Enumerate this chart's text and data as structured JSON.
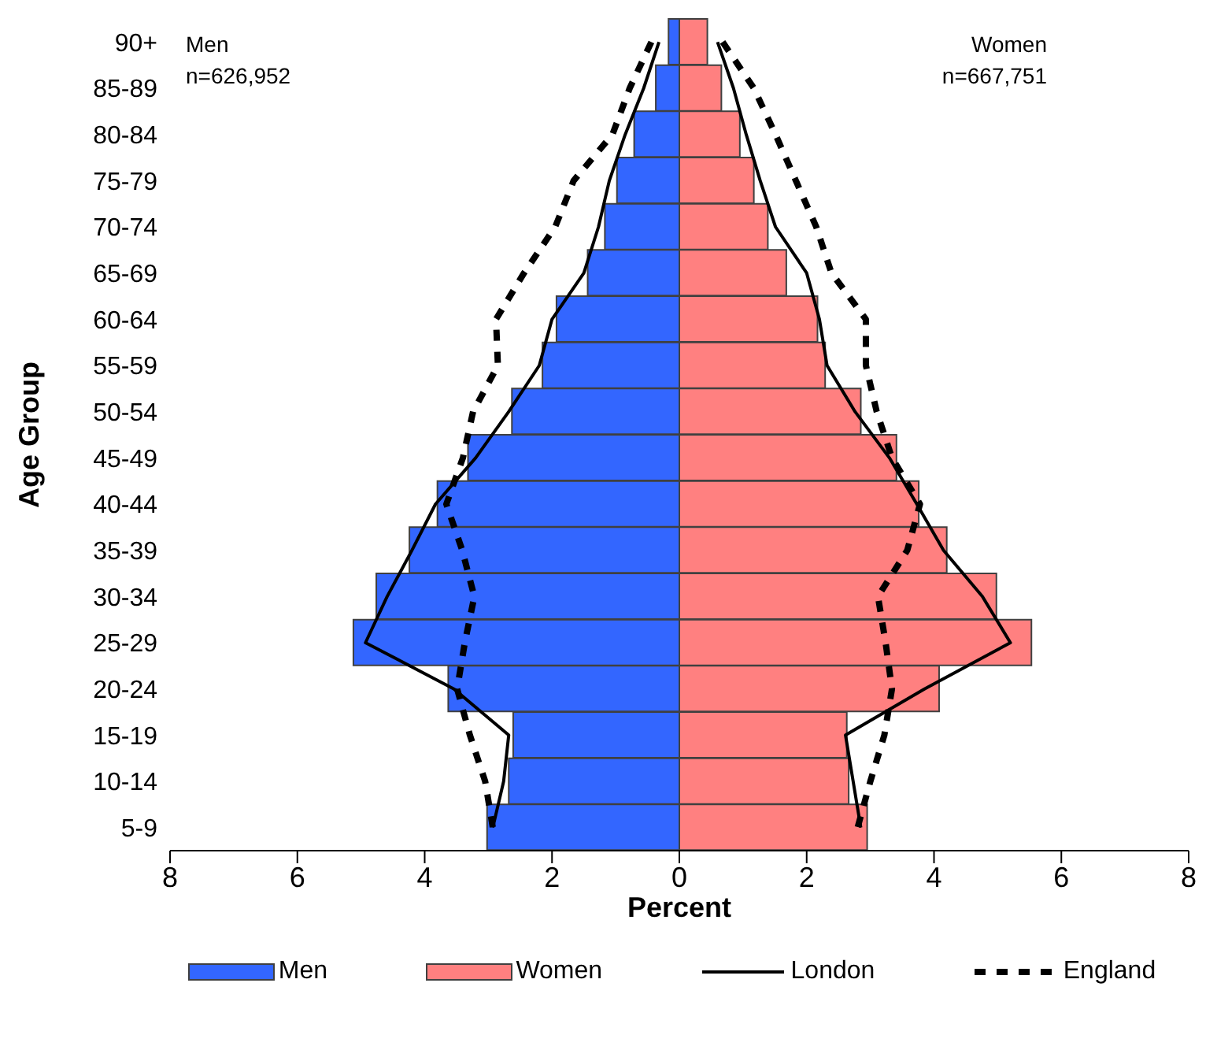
{
  "chart_data": {
    "type": "bar",
    "orientation": "horizontal",
    "stacked": true,
    "xlabel": "Percent",
    "ylabel": "Age Group",
    "categories": [
      "90+",
      "85-89",
      "80-84",
      "75-79",
      "70-74",
      "65-69",
      "60-64",
      "55-59",
      "50-54",
      "45-49",
      "40-44",
      "35-39",
      "30-34",
      "25-29",
      "20-24",
      "15-19",
      "10-14",
      "5-9"
    ],
    "series": [
      {
        "name": "Men",
        "color": "#3366ff",
        "values": [
          -0.17,
          -0.37,
          -0.71,
          -0.98,
          -1.17,
          -1.44,
          -1.93,
          -2.15,
          -2.63,
          -3.32,
          -3.8,
          -4.24,
          -4.76,
          -5.12,
          -3.63,
          -2.61,
          -2.68,
          -3.02
        ]
      },
      {
        "name": "Women",
        "color": "#ff8080",
        "values": [
          0.44,
          0.66,
          0.95,
          1.17,
          1.39,
          1.68,
          2.17,
          2.29,
          2.85,
          3.41,
          3.76,
          4.2,
          4.98,
          5.53,
          4.08,
          2.63,
          2.66,
          2.95
        ]
      },
      {
        "name": "London",
        "type": "line",
        "color": "#000000",
        "line_style": "solid",
        "values": [
          -0.32,
          -0.56,
          -0.85,
          -1.1,
          -1.27,
          -1.5,
          -2.0,
          -2.2,
          -2.68,
          -3.2,
          -3.83,
          -4.2,
          -4.59,
          -4.93,
          -3.54,
          -2.68,
          -2.76,
          -2.93
        ]
      },
      {
        "type": "line",
        "color": "#000000",
        "line_style": "solid",
        "values": [
          0.6,
          0.85,
          1.05,
          1.27,
          1.51,
          2.0,
          2.2,
          2.32,
          2.76,
          3.3,
          3.73,
          4.15,
          4.76,
          5.2,
          3.85,
          2.61,
          2.73,
          2.85
        ]
      },
      {
        "name": "England",
        "type": "line",
        "color": "#000000",
        "line_style": "dashed",
        "values": [
          -0.44,
          -0.78,
          -1.05,
          -1.66,
          -1.95,
          -2.44,
          -2.88,
          -2.85,
          -3.24,
          -3.4,
          -3.66,
          -3.41,
          -3.22,
          -3.37,
          -3.49,
          -3.29,
          -3.05,
          -2.93
        ]
      },
      {
        "type": "line",
        "color": "#000000",
        "line_style": "dashed",
        "values": [
          0.68,
          1.17,
          1.51,
          1.83,
          2.15,
          2.39,
          2.93,
          2.93,
          3.1,
          3.34,
          3.78,
          3.58,
          3.12,
          3.24,
          3.34,
          3.22,
          3.0,
          2.8
        ]
      }
    ],
    "xlim": [
      -8,
      8
    ],
    "xticks": [
      {
        "value": -8,
        "label": "8"
      },
      {
        "value": -6,
        "label": "6"
      },
      {
        "value": -4,
        "label": "4"
      },
      {
        "value": -2,
        "label": "2"
      },
      0,
      2,
      4,
      6,
      8
    ],
    "annotations": [
      "Men",
      "n=626,952",
      "Women",
      "n=667,751"
    ],
    "grid": false,
    "legend": "bottom",
    "marker": "none"
  }
}
